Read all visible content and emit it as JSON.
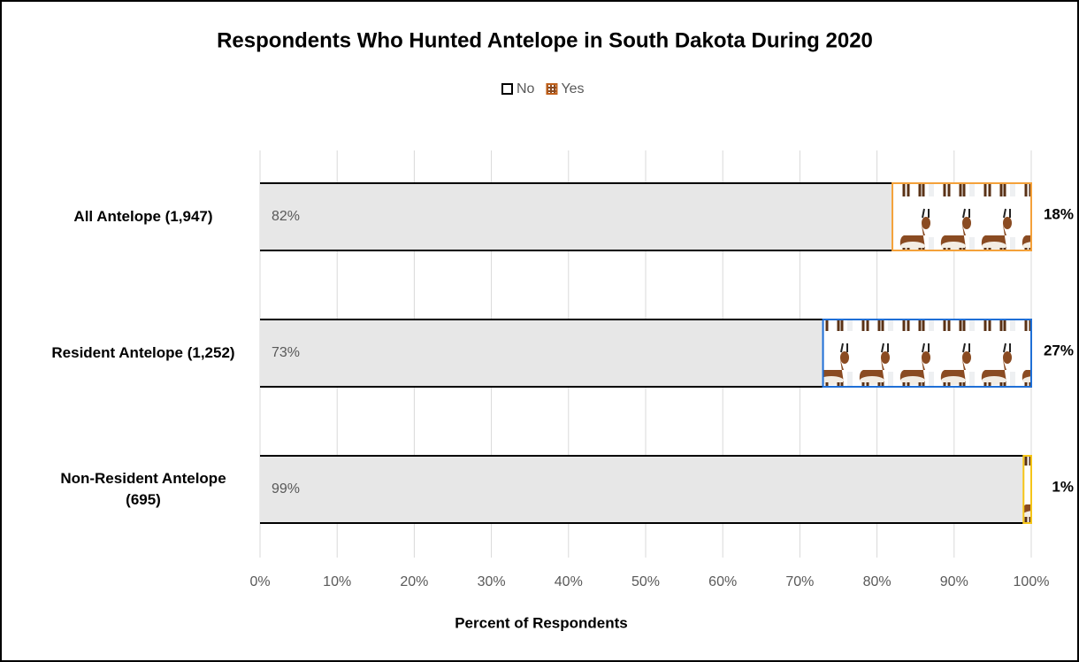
{
  "chart_data": {
    "type": "stacked-bar-horizontal",
    "title": "Respondents Who Hunted Antelope in South Dakota During 2020",
    "categories": [
      "All Antelope (1,947)",
      "Resident Antelope (1,252)",
      "Non-Resident Antelope (695)"
    ],
    "series": [
      {
        "name": "No",
        "color": "#e7e7e7",
        "values": [
          82,
          73,
          99
        ],
        "value_labels": [
          "82%",
          "73%",
          "99%"
        ]
      },
      {
        "name": "Yes",
        "color": "#8a4b22",
        "edge_colors": [
          "#f4a13a",
          "#1f6fd6",
          "#f5c518"
        ],
        "values": [
          18,
          27,
          1
        ],
        "value_labels": [
          "18%",
          "27%",
          "1%"
        ]
      }
    ],
    "xlabel": "Percent of Respondents",
    "xlim": [
      0,
      100
    ],
    "xticks": [
      {
        "value": 0,
        "label": "0%"
      },
      {
        "value": 10,
        "label": "10%"
      },
      {
        "value": 20,
        "label": "20%"
      },
      {
        "value": 30,
        "label": "30%"
      },
      {
        "value": 40,
        "label": "40%"
      },
      {
        "value": 50,
        "label": "50%"
      },
      {
        "value": 60,
        "label": "60%"
      },
      {
        "value": 70,
        "label": "70%"
      },
      {
        "value": 80,
        "label": "80%"
      },
      {
        "value": 90,
        "label": "90%"
      },
      {
        "value": 100,
        "label": "100%"
      }
    ],
    "grid": true,
    "legend": "top"
  }
}
